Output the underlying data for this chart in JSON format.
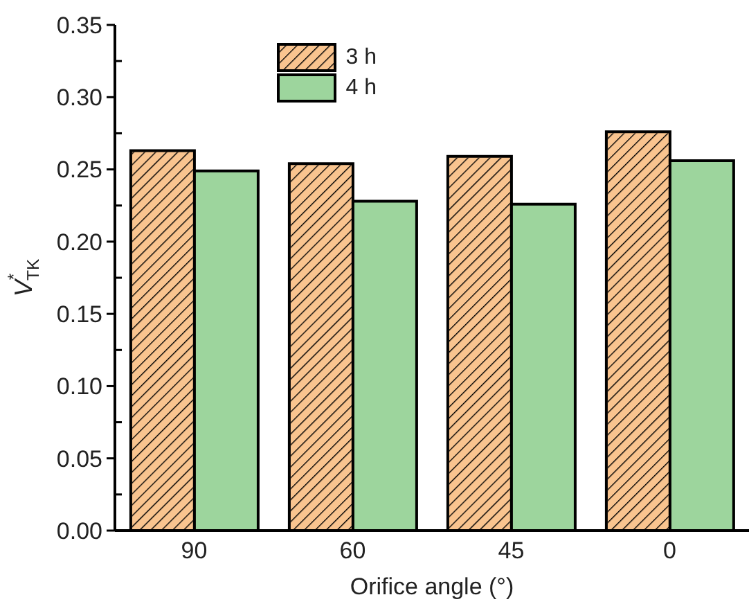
{
  "chart_data": {
    "type": "bar",
    "categories": [
      "90",
      "60",
      "45",
      "0"
    ],
    "xlabel": "Orifice angle (°)",
    "ylabel": "V$^{*}$$_{TK}$",
    "ylim": [
      0,
      0.35
    ],
    "yticks": [
      {
        "value": 0,
        "label": "0.00"
      },
      {
        "value": 0.025,
        "label": null
      },
      0.05,
      {
        "value": 0.075,
        "label": null
      },
      {
        "value": 0.1,
        "label": "0.10"
      },
      {
        "value": 0.125,
        "label": null
      },
      0.15,
      {
        "value": 0.175,
        "label": null
      },
      {
        "value": 0.2,
        "label": "0.20"
      },
      {
        "value": 0.225,
        "label": null
      },
      0.25,
      {
        "value": 0.275,
        "label": null
      },
      {
        "value": 0.3,
        "label": "0.30"
      },
      {
        "value": 0.325,
        "label": null
      },
      0.35
    ],
    "series": [
      {
        "name": "3 h",
        "color": "#f9c48f",
        "values": [
          0.263,
          0.254,
          0.259,
          0.276
        ]
      },
      {
        "name": "4 h",
        "color": "#9dd59d",
        "values": [
          0.249,
          0.228,
          0.226,
          0.256
        ]
      }
    ],
    "legend": "top left"
  }
}
